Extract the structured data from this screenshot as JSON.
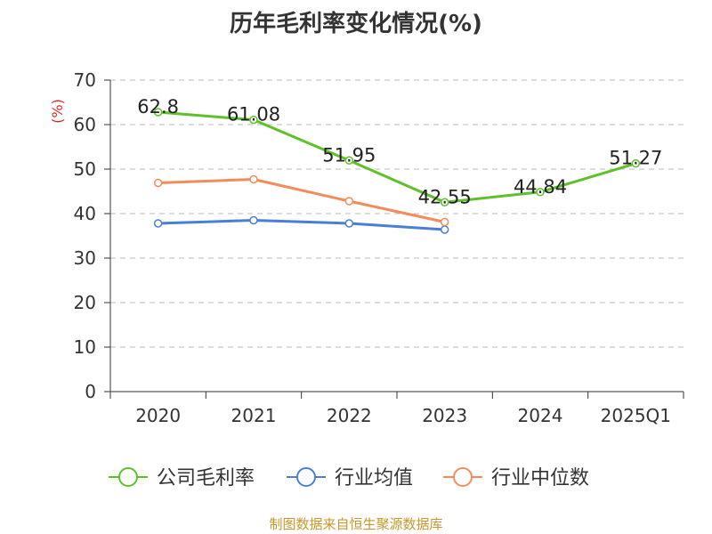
{
  "title": "历年毛利率变化情况(%)",
  "source": "制图数据来自恒生聚源数据库",
  "colors": {
    "gross_margin": "#5ec12a",
    "industry_avg": "#4a7fd8",
    "industry_median": "#f28c5a",
    "ylabel": "#d62a2a",
    "grid": "#bbbbbb",
    "axis": "#333333",
    "footer": "#c8962a"
  },
  "chart_data": {
    "type": "line",
    "title": "历年毛利率变化情况(%)",
    "xlabel": "",
    "ylabel": "(%)",
    "ylim": [
      0,
      70
    ],
    "yticks": [
      0,
      10,
      20,
      30,
      40,
      50,
      60,
      70
    ],
    "categories": [
      "2020",
      "2021",
      "2022",
      "2023",
      "2024",
      "2025Q1"
    ],
    "grid": "horizontal dashed",
    "legend_position": "bottom",
    "series": [
      {
        "name": "公司毛利率",
        "color": "#5ec12a",
        "values": [
          62.8,
          61.08,
          51.95,
          42.55,
          44.84,
          51.27
        ],
        "labels": [
          "62.8",
          "61.08",
          "51.95",
          "42.55",
          "44.84",
          "51.27"
        ]
      },
      {
        "name": "行业均值",
        "color": "#4a7fd8",
        "values": [
          37.8,
          38.5,
          37.8,
          36.4,
          null,
          null
        ],
        "labels": []
      },
      {
        "name": "行业中位数",
        "color": "#f28c5a",
        "values": [
          46.9,
          47.7,
          42.8,
          38.1,
          null,
          null
        ],
        "labels": []
      }
    ]
  }
}
